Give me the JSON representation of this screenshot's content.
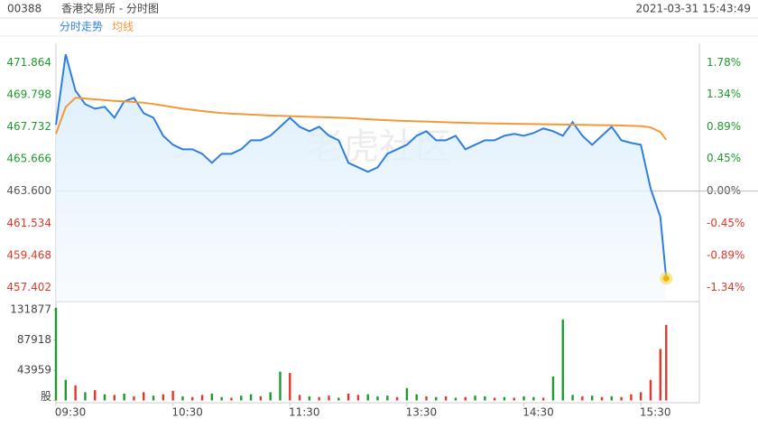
{
  "header": {
    "code": "00388",
    "name": "香港交易所 - 分时图",
    "timestamp": "2021-03-31 15:43:49"
  },
  "watermark": "老虎社区",
  "chart_data": {
    "type": "line",
    "x": [
      0,
      5,
      10,
      15,
      20,
      25,
      30,
      35,
      40,
      45,
      50,
      55,
      60,
      65,
      70,
      75,
      80,
      85,
      90,
      95,
      100,
      105,
      110,
      115,
      120,
      125,
      130,
      135,
      140,
      145,
      150,
      155,
      160,
      165,
      170,
      175,
      180,
      185,
      190,
      195,
      200,
      205,
      210,
      215,
      220,
      225,
      230,
      235,
      240,
      245,
      250,
      255,
      260,
      265,
      270,
      275,
      280,
      285,
      290,
      295,
      300,
      305,
      310,
      313
    ],
    "xlim": [
      0,
      330
    ],
    "xticks": [
      {
        "value": 0,
        "label": "09:30"
      },
      {
        "value": 60,
        "label": "10:30"
      },
      {
        "value": 120,
        "label": "11:30"
      },
      {
        "value": 180,
        "label": "13:30"
      },
      {
        "value": 240,
        "label": "14:30"
      },
      {
        "value": 300,
        "label": "15:30"
      }
    ],
    "series": [
      {
        "name": "分时走势",
        "color": "#2d7fe0",
        "values": [
          467.86,
          472.39,
          470.06,
          469.19,
          468.9,
          469.02,
          468.32,
          469.37,
          469.6,
          468.61,
          468.32,
          467.16,
          466.58,
          466.29,
          466.29,
          466.0,
          465.42,
          466.0,
          466.0,
          466.29,
          466.87,
          466.87,
          467.16,
          467.74,
          468.32,
          467.74,
          467.45,
          467.74,
          467.16,
          466.87,
          465.42,
          465.13,
          464.84,
          465.13,
          466.0,
          466.29,
          466.58,
          467.16,
          467.45,
          466.87,
          466.87,
          467.16,
          466.29,
          466.58,
          466.87,
          466.87,
          467.16,
          467.28,
          467.16,
          467.34,
          467.63,
          467.45,
          467.16,
          468.03,
          467.16,
          466.58,
          467.16,
          467.74,
          466.87,
          466.7,
          466.58,
          463.77,
          461.94,
          457.99
        ]
      },
      {
        "name": "均线",
        "color": "#f29a38",
        "values": [
          467.28,
          469.0,
          469.6,
          469.55,
          469.5,
          469.45,
          469.4,
          469.37,
          469.33,
          469.28,
          469.2,
          469.1,
          469.0,
          468.9,
          468.82,
          468.75,
          468.68,
          468.62,
          468.58,
          468.55,
          468.52,
          468.49,
          468.46,
          468.44,
          468.42,
          468.4,
          468.38,
          468.36,
          468.34,
          468.32,
          468.3,
          468.26,
          468.22,
          468.19,
          468.16,
          468.13,
          468.11,
          468.09,
          468.07,
          468.05,
          468.03,
          468.01,
          467.99,
          467.97,
          467.96,
          467.95,
          467.94,
          467.93,
          467.92,
          467.91,
          467.9,
          467.89,
          467.88,
          467.87,
          467.86,
          467.85,
          467.84,
          467.83,
          467.82,
          467.8,
          467.78,
          467.7,
          467.4,
          466.9
        ]
      }
    ],
    "ylim": [
      456.5,
      473.1
    ],
    "yticks": [
      471.864,
      469.798,
      467.732,
      465.666,
      {
        "value": 463.6,
        "label": "463.600"
      },
      461.534,
      459.468,
      457.402
    ],
    "y2lim": [
      -1.5315,
      2.049
    ],
    "y2ticks": [
      {
        "value": 1.78,
        "label": "1.78%"
      },
      {
        "value": 1.34,
        "label": "1.34%"
      },
      {
        "value": 0.89,
        "label": "0.89%"
      },
      {
        "value": 0.45,
        "label": "0.45%"
      },
      {
        "value": 0,
        "label": "0.00%"
      },
      {
        "value": -0.45,
        "label": "-0.45%"
      },
      {
        "value": -0.89,
        "label": "-0.89%"
      },
      {
        "value": -1.34,
        "label": "-1.34%"
      }
    ],
    "up_color": "#1f9a2e",
    "down_color": "#e0392b",
    "flat_color": "#555555",
    "volume": {
      "type": "bar",
      "values": [
        135000,
        30000,
        22000,
        12000,
        15000,
        9000,
        8000,
        10000,
        6000,
        12000,
        7000,
        9000,
        14000,
        6000,
        5000,
        8000,
        10000,
        5000,
        4000,
        7000,
        9000,
        6000,
        12000,
        42000,
        40000,
        8000,
        6000,
        5000,
        7000,
        4000,
        10000,
        8000,
        9000,
        6000,
        7000,
        5000,
        18000,
        9000,
        6000,
        5000,
        6000,
        4000,
        5000,
        7000,
        6000,
        4000,
        5000,
        4000,
        6000,
        5000,
        4000,
        35000,
        118000,
        8000,
        6000,
        7000,
        5000,
        6000,
        5000,
        9000,
        12000,
        30000,
        75000,
        110000
      ],
      "bar_colors": [
        "#1f9a2e",
        "#1f9a2e",
        "#e0392b",
        "#1f9a2e",
        "#e0392b",
        "#1f9a2e",
        "#e0392b",
        "#1f9a2e",
        "#e0392b",
        "#e0392b",
        "#1f9a2e",
        "#e0392b",
        "#e0392b",
        "#1f9a2e",
        "#e0392b",
        "#e0392b",
        "#1f9a2e",
        "#1f9a2e",
        "#e0392b",
        "#1f9a2e",
        "#1f9a2e",
        "#e0392b",
        "#1f9a2e",
        "#1f9a2e",
        "#e0392b",
        "#e0392b",
        "#1f9a2e",
        "#e0392b",
        "#e0392b",
        "#1f9a2e",
        "#e0392b",
        "#e0392b",
        "#1f9a2e",
        "#1f9a2e",
        "#1f9a2e",
        "#e0392b",
        "#1f9a2e",
        "#1f9a2e",
        "#e0392b",
        "#1f9a2e",
        "#e0392b",
        "#1f9a2e",
        "#e0392b",
        "#1f9a2e",
        "#1f9a2e",
        "#e0392b",
        "#1f9a2e",
        "#e0392b",
        "#1f9a2e",
        "#1f9a2e",
        "#e0392b",
        "#1f9a2e",
        "#1f9a2e",
        "#1f9a2e",
        "#e0392b",
        "#1f9a2e",
        "#e0392b",
        "#1f9a2e",
        "#e0392b",
        "#e0392b",
        "#e0392b",
        "#e0392b",
        "#e0392b",
        "#e0392b"
      ],
      "ylim": [
        0,
        140000
      ],
      "yticks": [
        131877,
        87918,
        43959,
        {
          "value": 0,
          "label": "股"
        }
      ]
    }
  }
}
